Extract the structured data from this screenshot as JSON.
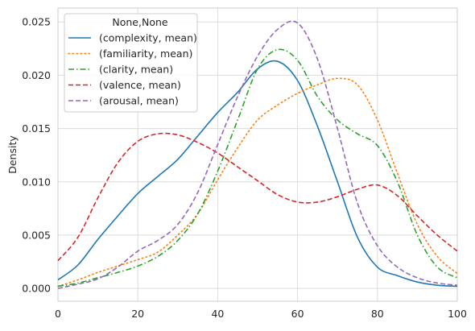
{
  "chart_data": {
    "type": "line",
    "title": "",
    "xlabel": "",
    "ylabel": "Density",
    "xlim": [
      0,
      100
    ],
    "ylim": [
      -0.0012,
      0.0263
    ],
    "grid": true,
    "x_ticks": [
      0,
      20,
      40,
      60,
      80,
      100
    ],
    "x_tick_labels": [
      "0",
      "20",
      "40",
      "60",
      "80",
      "100"
    ],
    "y_ticks": [
      0.0,
      0.005,
      0.01,
      0.015,
      0.02,
      0.025
    ],
    "y_tick_labels": [
      "0.000",
      "0.005",
      "0.010",
      "0.015",
      "0.020",
      "0.025"
    ],
    "legend": {
      "title": "None,None",
      "placement": "upper left"
    },
    "x": [
      0,
      5,
      10,
      15,
      20,
      25,
      30,
      35,
      40,
      45,
      50,
      55,
      60,
      65,
      70,
      75,
      80,
      85,
      90,
      95,
      100
    ],
    "series": [
      {
        "name": "(complexity, mean)",
        "color": "#1f77b4",
        "dash": "solid",
        "values": [
          0.0008,
          0.0022,
          0.0046,
          0.0068,
          0.0089,
          0.0105,
          0.0121,
          0.0143,
          0.0165,
          0.0184,
          0.0206,
          0.0213,
          0.0195,
          0.0152,
          0.01,
          0.0048,
          0.002,
          0.0012,
          0.0006,
          0.0003,
          0.0002
        ]
      },
      {
        "name": "(familiarity, mean)",
        "color": "#ff7f0e",
        "dash": "dotted",
        "values": [
          0.0002,
          0.0008,
          0.0015,
          0.0021,
          0.0027,
          0.0034,
          0.005,
          0.007,
          0.0102,
          0.0132,
          0.0158,
          0.0172,
          0.0183,
          0.0191,
          0.0197,
          0.0191,
          0.0158,
          0.0108,
          0.006,
          0.003,
          0.0014
        ]
      },
      {
        "name": "(clarity, mean)",
        "color": "#2ca02c",
        "dash": "dashdot",
        "values": [
          0.0002,
          0.0005,
          0.001,
          0.0015,
          0.0021,
          0.003,
          0.0045,
          0.007,
          0.011,
          0.0158,
          0.0206,
          0.0224,
          0.0214,
          0.018,
          0.0158,
          0.0145,
          0.0134,
          0.01,
          0.005,
          0.002,
          0.001
        ]
      },
      {
        "name": "(valence, mean)",
        "color": "#d62728",
        "dash": "dashed",
        "values": [
          0.0026,
          0.0048,
          0.0085,
          0.0118,
          0.0138,
          0.0145,
          0.0144,
          0.0137,
          0.0127,
          0.0114,
          0.0101,
          0.0088,
          0.0081,
          0.0081,
          0.0086,
          0.0093,
          0.0097,
          0.0087,
          0.0068,
          0.005,
          0.0035
        ]
      },
      {
        "name": "(arousal, mean)",
        "color": "#9467bd",
        "dash": "dashed",
        "values": [
          0.0,
          0.0004,
          0.0009,
          0.002,
          0.0035,
          0.0045,
          0.006,
          0.009,
          0.0135,
          0.018,
          0.0218,
          0.0243,
          0.0249,
          0.0215,
          0.015,
          0.008,
          0.004,
          0.002,
          0.001,
          0.0005,
          0.0003
        ]
      }
    ]
  }
}
